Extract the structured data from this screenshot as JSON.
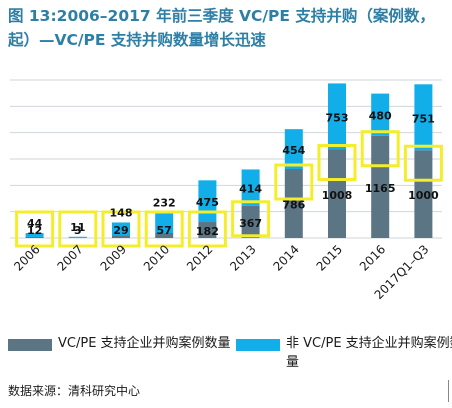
{
  "title": "图 13:2006–2017 年前三季度 VC/PE 支持并购（案例数，起）—VC/PE 支持并购数量增长迅速",
  "chart_data": {
    "type": "bar",
    "stacked": true,
    "categories": [
      "2006",
      "2007",
      "2009",
      "2010",
      "2012",
      "2013",
      "2014",
      "2015",
      "2016",
      "2017Q1–Q3"
    ],
    "series": [
      {
        "name": "VC/PE 支持企业并购案例数量",
        "values": [
          12,
          3,
          29,
          57,
          182,
          367,
          786,
          1008,
          1165,
          1000
        ],
        "color": "#5b7585"
      },
      {
        "name": "非 VC/PE 支持企业并购案例数量",
        "values": [
          44,
          11,
          148,
          232,
          475,
          414,
          454,
          753,
          480,
          751
        ],
        "color": "#12aee9"
      }
    ],
    "ylim": [
      0,
      1800
    ],
    "grid": true,
    "legend": "bottom",
    "annotations": "yellow highlight boxes around the VC/PE-backed segment of each bar"
  },
  "source": "数据来源：清科研究中心"
}
